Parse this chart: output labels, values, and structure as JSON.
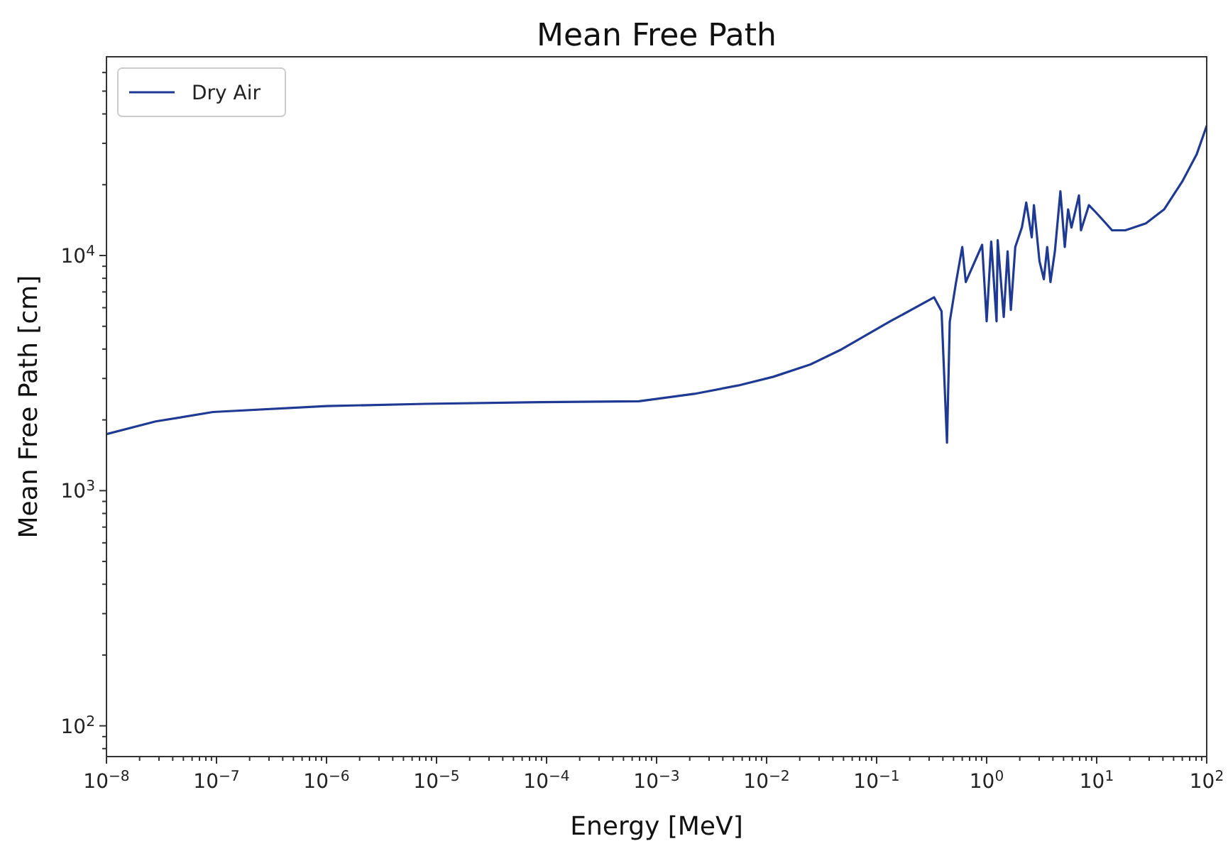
{
  "chart_data": {
    "type": "line",
    "title": "Mean Free Path",
    "xlabel": "Energy [MeV]",
    "ylabel": "Mean Free Path [cm]",
    "log": "xy",
    "grid": false,
    "legend": "top left",
    "marker": "none",
    "line_style": "solid",
    "xlim": [
      1e-08,
      100
    ],
    "ylim": [
      74,
      70000
    ],
    "xticks": [
      {
        "value": 1e-08,
        "label": "10$^{−8}$"
      },
      {
        "value": 1e-07,
        "label": "10$^{−7}$"
      },
      {
        "value": 1e-06,
        "label": "10$^{−6}$"
      },
      {
        "value": 1e-05,
        "label": "10$^{−5}$"
      },
      {
        "value": 0.0001,
        "label": "10$^{−4}$"
      },
      {
        "value": 0.001,
        "label": "10$^{−3}$"
      },
      {
        "value": 0.01,
        "label": "10$^{−2}$"
      },
      {
        "value": 0.1,
        "label": "10$^{−1}$"
      },
      {
        "value": 1,
        "label": "10$^{0}$"
      },
      {
        "value": 10,
        "label": "10$^{1}$"
      },
      {
        "value": 100,
        "label": "10$^{2}$"
      },
      {
        "value": 2e-08,
        "label": null
      },
      {
        "value": 3e-08,
        "label": null
      },
      {
        "value": 4e-08,
        "label": null
      },
      {
        "value": 5e-08,
        "label": null
      },
      {
        "value": 6e-08,
        "label": null
      },
      {
        "value": 7e-08,
        "label": null
      },
      {
        "value": 8e-08,
        "label": null
      },
      {
        "value": 9e-08,
        "label": null
      },
      {
        "value": 2e-07,
        "label": null
      },
      {
        "value": 3e-07,
        "label": null
      },
      {
        "value": 4e-07,
        "label": null
      },
      {
        "value": 5e-07,
        "label": null
      },
      {
        "value": 6e-07,
        "label": null
      },
      {
        "value": 7e-07,
        "label": null
      },
      {
        "value": 8e-07,
        "label": null
      },
      {
        "value": 9e-07,
        "label": null
      },
      {
        "value": 2e-06,
        "label": null
      },
      {
        "value": 3e-06,
        "label": null
      },
      {
        "value": 4e-06,
        "label": null
      },
      {
        "value": 5e-06,
        "label": null
      },
      {
        "value": 6e-06,
        "label": null
      },
      {
        "value": 7e-06,
        "label": null
      },
      {
        "value": 8e-06,
        "label": null
      },
      {
        "value": 9e-06,
        "label": null
      },
      {
        "value": 2e-05,
        "label": null
      },
      {
        "value": 3e-05,
        "label": null
      },
      {
        "value": 4e-05,
        "label": null
      },
      {
        "value": 5e-05,
        "label": null
      },
      {
        "value": 6e-05,
        "label": null
      },
      {
        "value": 7e-05,
        "label": null
      },
      {
        "value": 8e-05,
        "label": null
      },
      {
        "value": 9e-05,
        "label": null
      },
      {
        "value": 0.0002,
        "label": null
      },
      {
        "value": 0.0003,
        "label": null
      },
      {
        "value": 0.0004,
        "label": null
      },
      {
        "value": 0.0005,
        "label": null
      },
      {
        "value": 0.0006,
        "label": null
      },
      {
        "value": 0.0007,
        "label": null
      },
      {
        "value": 0.0008,
        "label": null
      },
      {
        "value": 0.0009,
        "label": null
      },
      {
        "value": 0.002,
        "label": null
      },
      {
        "value": 0.003,
        "label": null
      },
      {
        "value": 0.004,
        "label": null
      },
      {
        "value": 0.005,
        "label": null
      },
      {
        "value": 0.006,
        "label": null
      },
      {
        "value": 0.007,
        "label": null
      },
      {
        "value": 0.008,
        "label": null
      },
      {
        "value": 0.009,
        "label": null
      },
      {
        "value": 0.02,
        "label": null
      },
      {
        "value": 0.03,
        "label": null
      },
      {
        "value": 0.04,
        "label": null
      },
      {
        "value": 0.05,
        "label": null
      },
      {
        "value": 0.06,
        "label": null
      },
      {
        "value": 0.07,
        "label": null
      },
      {
        "value": 0.08,
        "label": null
      },
      {
        "value": 0.09,
        "label": null
      },
      {
        "value": 0.2,
        "label": null
      },
      {
        "value": 0.3,
        "label": null
      },
      {
        "value": 0.4,
        "label": null
      },
      {
        "value": 0.5,
        "label": null
      },
      {
        "value": 0.6,
        "label": null
      },
      {
        "value": 0.7,
        "label": null
      },
      {
        "value": 0.8,
        "label": null
      },
      {
        "value": 0.9,
        "label": null
      },
      {
        "value": 2,
        "label": null
      },
      {
        "value": 3,
        "label": null
      },
      {
        "value": 4,
        "label": null
      },
      {
        "value": 5,
        "label": null
      },
      {
        "value": 6,
        "label": null
      },
      {
        "value": 7,
        "label": null
      },
      {
        "value": 8,
        "label": null
      },
      {
        "value": 9,
        "label": null
      },
      {
        "value": 20,
        "label": null
      },
      {
        "value": 30,
        "label": null
      },
      {
        "value": 40,
        "label": null
      },
      {
        "value": 50,
        "label": null
      },
      {
        "value": 60,
        "label": null
      },
      {
        "value": 70,
        "label": null
      },
      {
        "value": 80,
        "label": null
      },
      {
        "value": 90,
        "label": null
      }
    ],
    "yticks": [
      {
        "value": 100,
        "label": "10$^{2}$"
      },
      {
        "value": 1000,
        "label": "10$^{3}$"
      },
      {
        "value": 10000,
        "label": "10$^{4}$"
      },
      {
        "value": 80,
        "label": null
      },
      {
        "value": 90,
        "label": null
      },
      {
        "value": 200,
        "label": null
      },
      {
        "value": 300,
        "label": null
      },
      {
        "value": 400,
        "label": null
      },
      {
        "value": 500,
        "label": null
      },
      {
        "value": 600,
        "label": null
      },
      {
        "value": 700,
        "label": null
      },
      {
        "value": 800,
        "label": null
      },
      {
        "value": 900,
        "label": null
      },
      {
        "value": 2000,
        "label": null
      },
      {
        "value": 3000,
        "label": null
      },
      {
        "value": 4000,
        "label": null
      },
      {
        "value": 5000,
        "label": null
      },
      {
        "value": 6000,
        "label": null
      },
      {
        "value": 7000,
        "label": null
      },
      {
        "value": 8000,
        "label": null
      },
      {
        "value": 9000,
        "label": null
      },
      {
        "value": 20000,
        "label": null
      },
      {
        "value": 30000,
        "label": null
      },
      {
        "value": 40000,
        "label": null
      },
      {
        "value": 50000,
        "label": null
      },
      {
        "value": 60000,
        "label": null
      }
    ],
    "series": [
      {
        "name": "Dry Air",
        "color": "#1f3a93",
        "x": [
          1e-08,
          2.8e-08,
          9.3e-08,
          1e-06,
          8e-06,
          8.7e-05,
          0.00069,
          0.0022,
          0.0055,
          0.0115,
          0.025,
          0.048,
          0.133,
          0.333,
          0.389,
          0.436,
          0.462,
          0.525,
          0.6,
          0.646,
          0.91,
          1.0,
          1.1,
          1.23,
          1.26,
          1.43,
          1.55,
          1.66,
          1.82,
          2.09,
          2.29,
          2.57,
          2.69,
          3.02,
          3.31,
          3.55,
          3.8,
          4.17,
          4.68,
          5.13,
          5.5,
          5.9,
          6.9,
          7.2,
          8.5,
          9.8,
          11.5,
          13.8,
          18.2,
          28,
          41,
          60,
          81,
          100
        ],
        "values": [
          1740,
          1970,
          2160,
          2290,
          2340,
          2380,
          2400,
          2580,
          2800,
          3050,
          3440,
          3990,
          5250,
          6640,
          5800,
          1600,
          5230,
          7610,
          10870,
          7710,
          11100,
          5250,
          11460,
          5250,
          11620,
          5480,
          10420,
          5870,
          10870,
          13150,
          16790,
          11940,
          16370,
          9470,
          7930,
          10870,
          7710,
          10420,
          18750,
          10870,
          15700,
          13150,
          18000,
          12800,
          16370,
          15280,
          14080,
          12800,
          12800,
          13690,
          15700,
          20650,
          26900,
          35600
        ]
      }
    ]
  }
}
